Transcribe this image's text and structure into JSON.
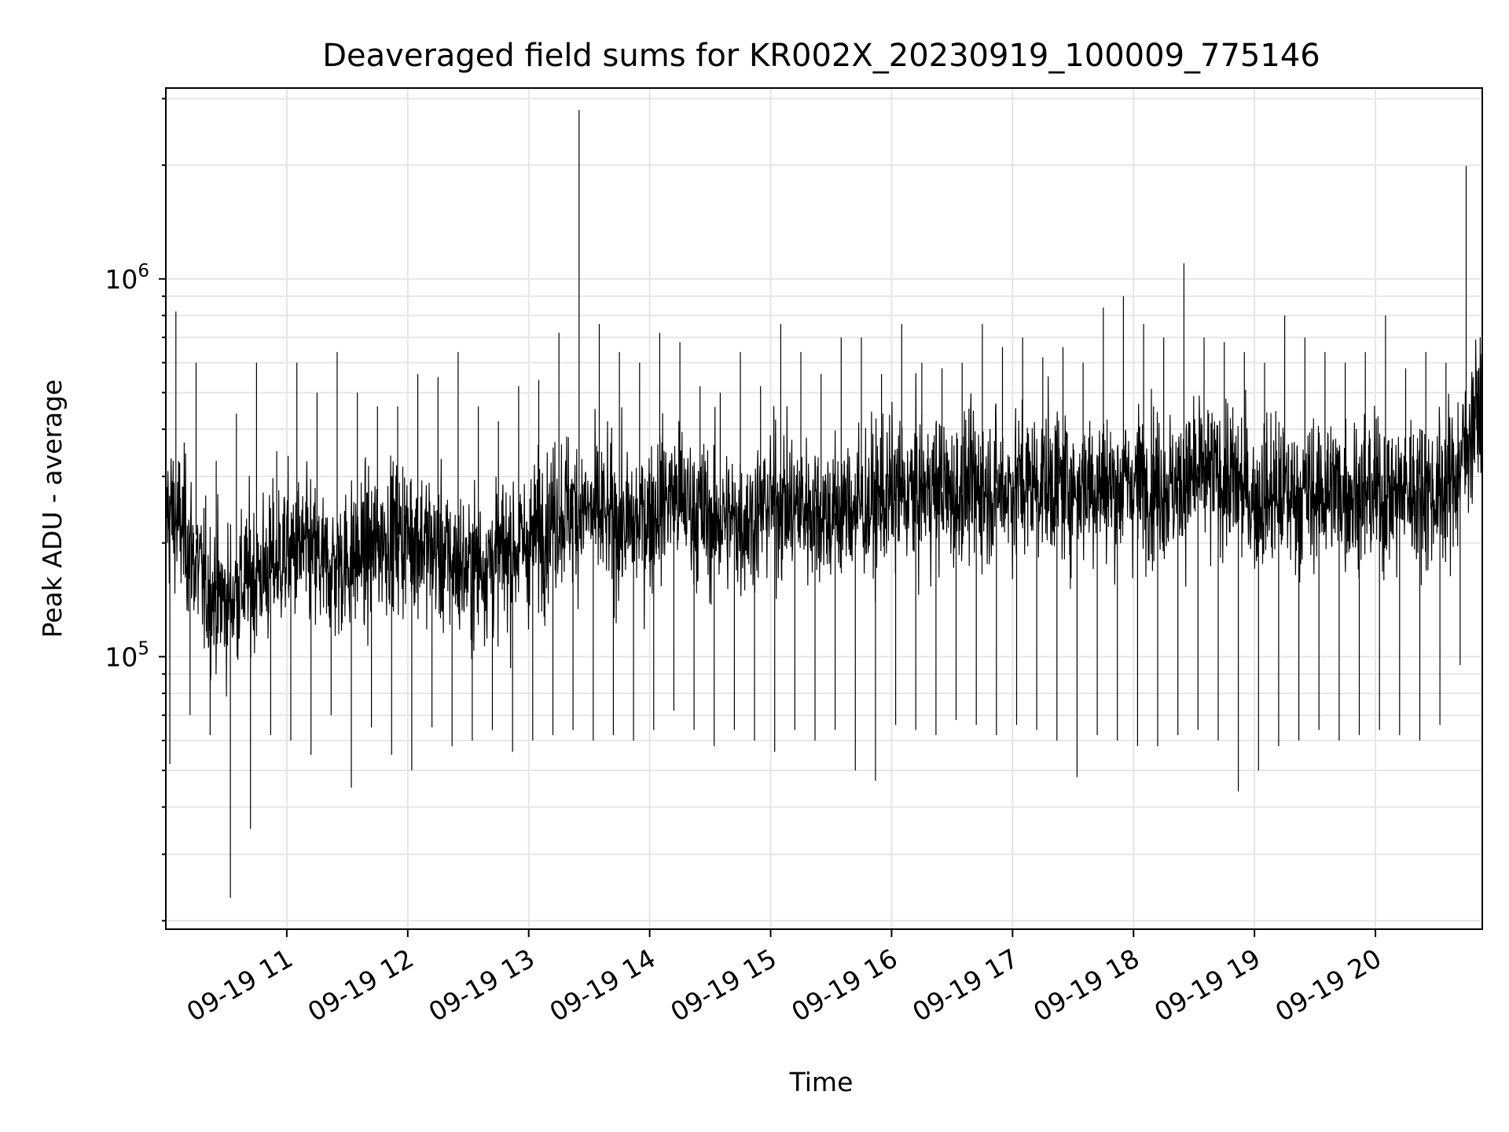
{
  "chart_data": {
    "type": "line",
    "title": "Deaveraged field sums for KR002X_20230919_100009_775146",
    "xlabel": "Time",
    "ylabel": "Peak ADU - average",
    "x_range": [
      "2023-09-19 10:00",
      "2023-09-19 20:53"
    ],
    "x_tick_labels": [
      "09-19 11",
      "09-19 12",
      "09-19 13",
      "09-19 14",
      "09-19 15",
      "09-19 16",
      "09-19 17",
      "09-19 18",
      "09-19 19",
      "09-19 20"
    ],
    "y_scale": "log",
    "ylim": [
      19000,
      3200000
    ],
    "y_tick_labels": [
      {
        "base": "10",
        "exp": "5"
      },
      {
        "base": "10",
        "exp": "6"
      }
    ],
    "grid": true,
    "line_color": "#000000",
    "grid_color": "#e6e6e6",
    "series": [
      {
        "x": [
          "2023-09-19 10:00",
          "2023-09-19 10:10",
          "2023-09-19 10:20",
          "2023-09-19 10:30",
          "2023-09-19 10:40",
          "2023-09-19 10:50",
          "2023-09-19 11:00",
          "2023-09-19 11:10",
          "2023-09-19 11:20",
          "2023-09-19 11:30",
          "2023-09-19 11:40",
          "2023-09-19 11:50",
          "2023-09-19 12:00",
          "2023-09-19 12:10",
          "2023-09-19 12:20",
          "2023-09-19 12:30",
          "2023-09-19 12:40",
          "2023-09-19 12:50",
          "2023-09-19 13:00",
          "2023-09-19 13:10",
          "2023-09-19 13:20",
          "2023-09-19 13:30",
          "2023-09-19 13:40",
          "2023-09-19 13:50",
          "2023-09-19 14:00",
          "2023-09-19 14:10",
          "2023-09-19 14:20",
          "2023-09-19 14:30",
          "2023-09-19 14:40",
          "2023-09-19 14:50",
          "2023-09-19 15:00",
          "2023-09-19 15:10",
          "2023-09-19 15:20",
          "2023-09-19 15:30",
          "2023-09-19 15:40",
          "2023-09-19 15:50",
          "2023-09-19 16:00",
          "2023-09-19 16:10",
          "2023-09-19 16:20",
          "2023-09-19 16:30",
          "2023-09-19 16:40",
          "2023-09-19 16:50",
          "2023-09-19 17:00",
          "2023-09-19 17:10",
          "2023-09-19 17:20",
          "2023-09-19 17:30",
          "2023-09-19 17:40",
          "2023-09-19 17:50",
          "2023-09-19 18:00",
          "2023-09-19 18:10",
          "2023-09-19 18:20",
          "2023-09-19 18:30",
          "2023-09-19 18:40",
          "2023-09-19 18:50",
          "2023-09-19 19:00",
          "2023-09-19 19:10",
          "2023-09-19 19:20",
          "2023-09-19 19:30",
          "2023-09-19 19:40",
          "2023-09-19 19:50",
          "2023-09-19 20:00",
          "2023-09-19 20:10",
          "2023-09-19 20:20",
          "2023-09-19 20:30",
          "2023-09-19 20:40",
          "2023-09-19 20:50"
        ],
        "baseline": [
          250000,
          210000,
          150000,
          140000,
          160000,
          170000,
          190000,
          190000,
          170000,
          180000,
          190000,
          210000,
          210000,
          200000,
          180000,
          170000,
          180000,
          190000,
          200000,
          230000,
          250000,
          240000,
          230000,
          220000,
          240000,
          270000,
          250000,
          230000,
          230000,
          230000,
          260000,
          250000,
          250000,
          240000,
          250000,
          250000,
          270000,
          270000,
          280000,
          270000,
          280000,
          280000,
          280000,
          290000,
          290000,
          280000,
          290000,
          280000,
          290000,
          290000,
          280000,
          300000,
          300000,
          290000,
          260000,
          270000,
          270000,
          270000,
          280000,
          270000,
          270000,
          270000,
          280000,
          270000,
          300000,
          450000
        ],
        "max": [
          820000,
          600000,
          330000,
          440000,
          600000,
          350000,
          600000,
          500000,
          640000,
          500000,
          460000,
          460000,
          560000,
          550000,
          640000,
          460000,
          420000,
          520000,
          540000,
          720000,
          2800000,
          760000,
          640000,
          600000,
          720000,
          680000,
          520000,
          500000,
          640000,
          520000,
          760000,
          640000,
          560000,
          700000,
          700000,
          560000,
          760000,
          600000,
          580000,
          600000,
          760000,
          660000,
          700000,
          620000,
          660000,
          600000,
          840000,
          900000,
          760000,
          700000,
          1100000,
          700000,
          680000,
          640000,
          600000,
          800000,
          700000,
          640000,
          600000,
          640000,
          800000,
          580000,
          640000,
          600000,
          1990000,
          880000
        ],
        "min": [
          52000,
          70000,
          62000,
          23000,
          35000,
          62000,
          60000,
          55000,
          70000,
          45000,
          65000,
          55000,
          50000,
          65000,
          58000,
          60000,
          64000,
          56000,
          60000,
          62000,
          64000,
          60000,
          62000,
          60000,
          64000,
          72000,
          64000,
          58000,
          64000,
          60000,
          56000,
          64000,
          60000,
          64000,
          50000,
          47000,
          66000,
          64000,
          62000,
          68000,
          66000,
          62000,
          66000,
          64000,
          60000,
          48000,
          62000,
          60000,
          58000,
          58000,
          62000,
          64000,
          60000,
          44000,
          50000,
          58000,
          60000,
          64000,
          60000,
          62000,
          64000,
          62000,
          60000,
          66000,
          95000,
          200000
        ]
      }
    ]
  }
}
